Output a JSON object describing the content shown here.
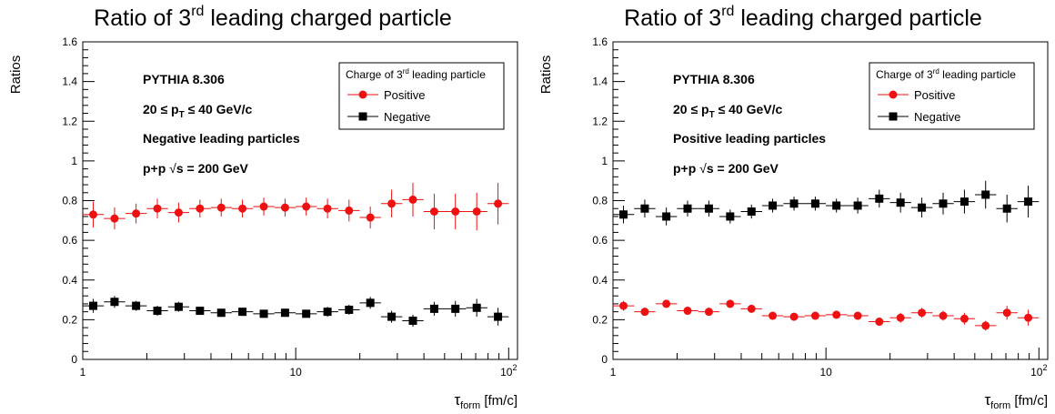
{
  "chart_data": [
    {
      "type": "scatter",
      "title": {
        "pre": "Ratio of 3",
        "sup": "rd",
        "post": " leading charged particle"
      },
      "ylabel": "Ratios",
      "xlabel": {
        "main": "τ",
        "sub": "form",
        "unit": " [fm/c]"
      },
      "xscale": "log",
      "xlim": [
        1,
        110
      ],
      "ylim": [
        0,
        1.6
      ],
      "xticks": [
        {
          "v": 1,
          "base": "1",
          "exp": ""
        },
        {
          "v": 10,
          "base": "10",
          "exp": ""
        },
        {
          "v": 100,
          "base": "10",
          "exp": "2"
        }
      ],
      "yticks": [
        {
          "v": 0,
          "label": "0"
        },
        {
          "v": 0.2,
          "label": "0.2"
        },
        {
          "v": 0.4,
          "label": "0.4"
        },
        {
          "v": 0.6,
          "label": "0.6"
        },
        {
          "v": 0.8,
          "label": "0.8"
        },
        {
          "v": 1.0,
          "label": "1"
        },
        {
          "v": 1.2,
          "label": "1.2"
        },
        {
          "v": 1.4,
          "label": "1.4"
        },
        {
          "v": 1.6,
          "label": "1.6"
        }
      ],
      "annotations": {
        "generator": "PYTHIA 8.306",
        "pt_range": {
          "a": "20  ≤ p",
          "sub": "T",
          "b": " ≤ 40 GeV/c"
        },
        "selection": "Negative leading particles",
        "system": {
          "a": "p+p  ",
          "root": "√",
          "s": "s",
          "b": " = 200 GeV"
        }
      },
      "legend": {
        "title": {
          "pre": "Charge of 3",
          "sup": "rd",
          "post": " leading particle"
        },
        "position": "top-right"
      },
      "x": [
        1.12,
        1.41,
        1.78,
        2.24,
        2.82,
        3.55,
        4.47,
        5.62,
        7.08,
        8.91,
        11.2,
        14.1,
        17.8,
        22.4,
        28.2,
        35.5,
        44.7,
        56.2,
        70.8,
        89.1
      ],
      "series": [
        {
          "name": "Positive",
          "color": "#ee1111",
          "marker": "circle",
          "values": [
            0.73,
            0.71,
            0.735,
            0.76,
            0.74,
            0.76,
            0.765,
            0.76,
            0.77,
            0.765,
            0.77,
            0.76,
            0.75,
            0.715,
            0.785,
            0.805,
            0.745,
            0.745,
            0.745,
            0.785
          ],
          "errors": [
            0.065,
            0.055,
            0.05,
            0.05,
            0.05,
            0.045,
            0.045,
            0.045,
            0.045,
            0.045,
            0.045,
            0.05,
            0.055,
            0.055,
            0.07,
            0.085,
            0.09,
            0.09,
            0.095,
            0.105
          ]
        },
        {
          "name": "Negative",
          "color": "#000000",
          "marker": "square",
          "values": [
            0.27,
            0.29,
            0.27,
            0.245,
            0.265,
            0.245,
            0.235,
            0.24,
            0.23,
            0.235,
            0.23,
            0.24,
            0.25,
            0.285,
            0.215,
            0.195,
            0.255,
            0.255,
            0.26,
            0.215
          ],
          "errors": [
            0.035,
            0.03,
            0.025,
            0.025,
            0.025,
            0.02,
            0.02,
            0.02,
            0.02,
            0.02,
            0.02,
            0.025,
            0.025,
            0.03,
            0.03,
            0.03,
            0.035,
            0.04,
            0.045,
            0.045
          ]
        }
      ]
    },
    {
      "type": "scatter",
      "title": {
        "pre": "Ratio of 3",
        "sup": "rd",
        "post": " leading charged particle"
      },
      "ylabel": "Ratios",
      "xlabel": {
        "main": "τ",
        "sub": "form",
        "unit": " [fm/c]"
      },
      "xscale": "log",
      "xlim": [
        1,
        110
      ],
      "ylim": [
        0,
        1.6
      ],
      "xticks": [
        {
          "v": 1,
          "base": "1",
          "exp": ""
        },
        {
          "v": 10,
          "base": "10",
          "exp": ""
        },
        {
          "v": 100,
          "base": "10",
          "exp": "2"
        }
      ],
      "yticks": [
        {
          "v": 0,
          "label": "0"
        },
        {
          "v": 0.2,
          "label": "0.2"
        },
        {
          "v": 0.4,
          "label": "0.4"
        },
        {
          "v": 0.6,
          "label": "0.6"
        },
        {
          "v": 0.8,
          "label": "0.8"
        },
        {
          "v": 1.0,
          "label": "1"
        },
        {
          "v": 1.2,
          "label": "1.2"
        },
        {
          "v": 1.4,
          "label": "1.4"
        },
        {
          "v": 1.6,
          "label": "1.6"
        }
      ],
      "annotations": {
        "generator": "PYTHIA 8.306",
        "pt_range": {
          "a": "20  ≤ p",
          "sub": "T",
          "b": " ≤ 40 GeV/c"
        },
        "selection": "Positive leading particles",
        "system": {
          "a": "p+p  ",
          "root": "√",
          "s": "s",
          "b": " = 200 GeV"
        }
      },
      "legend": {
        "title": {
          "pre": "Charge of 3",
          "sup": "rd",
          "post": " leading particle"
        },
        "position": "top-right"
      },
      "x": [
        1.12,
        1.41,
        1.78,
        2.24,
        2.82,
        3.55,
        4.47,
        5.62,
        7.08,
        8.91,
        11.2,
        14.1,
        17.8,
        22.4,
        28.2,
        35.5,
        44.7,
        56.2,
        70.8,
        89.1
      ],
      "series": [
        {
          "name": "Positive",
          "color": "#ee1111",
          "marker": "circle",
          "values": [
            0.27,
            0.24,
            0.28,
            0.245,
            0.24,
            0.28,
            0.255,
            0.22,
            0.215,
            0.22,
            0.225,
            0.22,
            0.19,
            0.21,
            0.235,
            0.22,
            0.205,
            0.17,
            0.235,
            0.21
          ],
          "errors": [
            0.025,
            0.02,
            0.02,
            0.02,
            0.02,
            0.02,
            0.015,
            0.015,
            0.015,
            0.015,
            0.015,
            0.015,
            0.02,
            0.025,
            0.025,
            0.025,
            0.03,
            0.025,
            0.035,
            0.04
          ]
        },
        {
          "name": "Negative",
          "color": "#000000",
          "marker": "square",
          "values": [
            0.73,
            0.76,
            0.72,
            0.76,
            0.76,
            0.72,
            0.745,
            0.775,
            0.785,
            0.785,
            0.775,
            0.775,
            0.81,
            0.79,
            0.765,
            0.785,
            0.795,
            0.83,
            0.76,
            0.795
          ],
          "errors": [
            0.045,
            0.045,
            0.045,
            0.04,
            0.04,
            0.035,
            0.035,
            0.035,
            0.035,
            0.035,
            0.035,
            0.04,
            0.045,
            0.05,
            0.05,
            0.055,
            0.06,
            0.07,
            0.07,
            0.08
          ]
        }
      ]
    }
  ]
}
